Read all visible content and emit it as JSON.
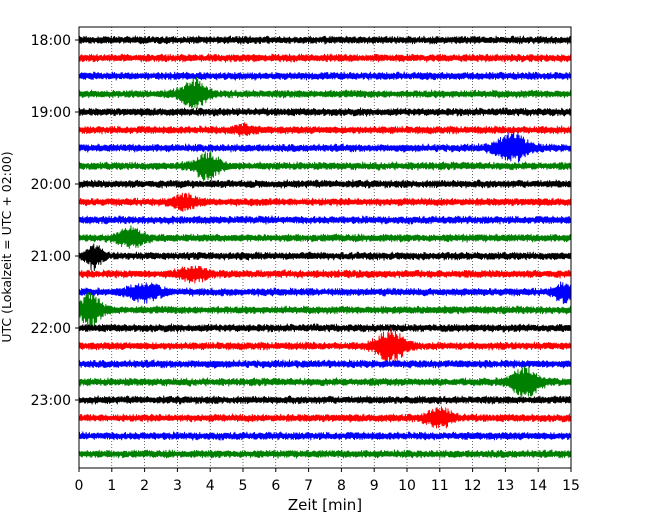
{
  "chart_data": {
    "type": "line",
    "title": "",
    "xlabel": "Zeit  [min]",
    "ylabel": "UTC (Lokalzeit = UTC + 02:00)",
    "xlim": [
      0,
      15
    ],
    "x_ticks": [
      0,
      1,
      2,
      3,
      4,
      5,
      6,
      7,
      8,
      9,
      10,
      11,
      12,
      13,
      14,
      15
    ],
    "x_tick_labels": [
      "0",
      "1",
      "2",
      "3",
      "4",
      "5",
      "6",
      "7",
      "8",
      "9",
      "10",
      "11",
      "12",
      "13",
      "14",
      "15"
    ],
    "y_ticks": [
      {
        "label": "18:00",
        "trace_index": 0
      },
      {
        "label": "19:00",
        "trace_index": 4
      },
      {
        "label": "20:00",
        "trace_index": 8
      },
      {
        "label": "21:00",
        "trace_index": 12
      },
      {
        "label": "22:00",
        "trace_index": 16
      },
      {
        "label": "23:00",
        "trace_index": 20
      }
    ],
    "trace_interval_minutes": 15,
    "grid": "vertical dotted",
    "colors": [
      "#000000",
      "#ff0000",
      "#0000ff",
      "#008000"
    ],
    "traces": [
      {
        "start": "18:00",
        "color": "#000000",
        "events": []
      },
      {
        "start": "18:15",
        "color": "#ff0000",
        "events": []
      },
      {
        "start": "18:30",
        "color": "#0000ff",
        "events": []
      },
      {
        "start": "18:45",
        "color": "#008000",
        "events": [
          {
            "t": 3.5,
            "amp": 1.0,
            "width": 0.4
          }
        ]
      },
      {
        "start": "19:00",
        "color": "#000000",
        "events": []
      },
      {
        "start": "19:15",
        "color": "#ff0000",
        "events": [
          {
            "t": 5.0,
            "amp": 0.3,
            "width": 0.3
          }
        ]
      },
      {
        "start": "19:30",
        "color": "#0000ff",
        "events": [
          {
            "t": 13.2,
            "amp": 1.0,
            "width": 0.5
          }
        ]
      },
      {
        "start": "19:45",
        "color": "#008000",
        "events": [
          {
            "t": 3.9,
            "amp": 0.9,
            "width": 0.4
          }
        ]
      },
      {
        "start": "20:00",
        "color": "#000000",
        "events": []
      },
      {
        "start": "20:15",
        "color": "#ff0000",
        "events": [
          {
            "t": 3.2,
            "amp": 0.45,
            "width": 0.4
          }
        ]
      },
      {
        "start": "20:30",
        "color": "#0000ff",
        "events": []
      },
      {
        "start": "20:45",
        "color": "#008000",
        "events": [
          {
            "t": 1.6,
            "amp": 0.7,
            "width": 0.4
          }
        ]
      },
      {
        "start": "21:00",
        "color": "#000000",
        "events": [
          {
            "t": 0.45,
            "amp": 0.85,
            "width": 0.25
          }
        ]
      },
      {
        "start": "21:15",
        "color": "#ff0000",
        "events": [
          {
            "t": 3.5,
            "amp": 0.45,
            "width": 0.45
          }
        ]
      },
      {
        "start": "21:30",
        "color": "#0000ff",
        "events": [
          {
            "t": 2.0,
            "amp": 0.6,
            "width": 0.5
          },
          {
            "t": 14.8,
            "amp": 0.7,
            "width": 0.3
          }
        ]
      },
      {
        "start": "21:45",
        "color": "#008000",
        "events": [
          {
            "t": 0.35,
            "amp": 1.1,
            "width": 0.35
          }
        ]
      },
      {
        "start": "22:00",
        "color": "#000000",
        "events": []
      },
      {
        "start": "22:15",
        "color": "#ff0000",
        "events": [
          {
            "t": 9.5,
            "amp": 1.1,
            "width": 0.45
          }
        ]
      },
      {
        "start": "22:30",
        "color": "#0000ff",
        "events": []
      },
      {
        "start": "22:45",
        "color": "#008000",
        "events": [
          {
            "t": 13.6,
            "amp": 1.0,
            "width": 0.45
          }
        ]
      },
      {
        "start": "23:00",
        "color": "#000000",
        "events": []
      },
      {
        "start": "23:15",
        "color": "#ff0000",
        "events": [
          {
            "t": 11.0,
            "amp": 0.65,
            "width": 0.4
          }
        ]
      },
      {
        "start": "23:30",
        "color": "#0000ff",
        "events": []
      },
      {
        "start": "23:45",
        "color": "#008000",
        "events": []
      }
    ]
  }
}
